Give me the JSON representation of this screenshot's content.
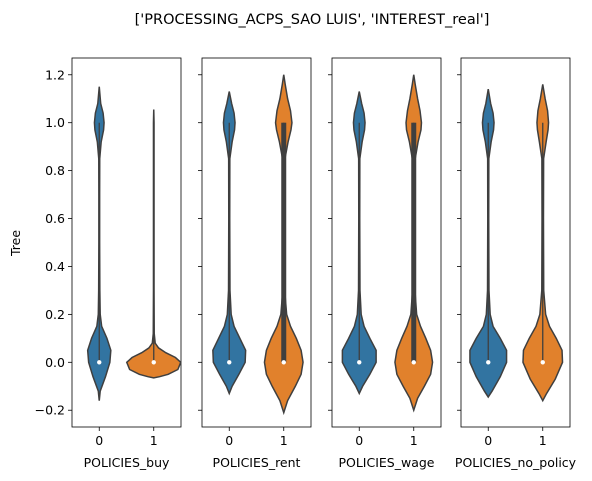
{
  "figure_title": "['PROCESSING_ACPS_SAO LUIS', 'INTEREST_real']",
  "chart_data": {
    "type": "violin",
    "title": "['PROCESSING_ACPS_SAO LUIS', 'INTEREST_real']",
    "ylabel": "Tree",
    "ylim": [
      -0.27,
      1.27
    ],
    "yticks": [
      -0.2,
      0.0,
      0.2,
      0.4,
      0.6,
      0.8,
      1.0,
      1.2
    ],
    "ytick_labels": [
      "−0.2",
      "0.0",
      "0.2",
      "0.4",
      "0.6",
      "0.8",
      "1.0",
      "1.2"
    ],
    "categories": [
      "0",
      "1"
    ],
    "colors": {
      "0": "#3274a1",
      "1": "#e1812c",
      "outline": "#3f3f3f"
    },
    "panels": [
      {
        "xlabel": "POLICIES_buy",
        "violins": [
          {
            "category": "0",
            "median": 0.0,
            "q1": 0.0,
            "q3": 0.0,
            "range": [
              -0.16,
              1.15
            ],
            "profile": [
              [
                -0.16,
                0.0
              ],
              [
                -0.12,
                0.02
              ],
              [
                -0.06,
                0.13
              ],
              [
                0.0,
                0.22
              ],
              [
                0.05,
                0.24
              ],
              [
                0.1,
                0.16
              ],
              [
                0.15,
                0.05
              ],
              [
                0.2,
                0.02
              ],
              [
                0.3,
                0.012
              ],
              [
                0.5,
                0.008
              ],
              [
                0.7,
                0.008
              ],
              [
                0.85,
                0.01
              ],
              [
                0.92,
                0.04
              ],
              [
                0.97,
                0.09
              ],
              [
                1.0,
                0.1
              ],
              [
                1.04,
                0.08
              ],
              [
                1.08,
                0.03
              ],
              [
                1.15,
                0.0
              ]
            ]
          },
          {
            "category": "1",
            "median": 0.0,
            "q1": 0.0,
            "q3": 0.0,
            "range": [
              -0.065,
              1.055
            ],
            "profile": [
              [
                -0.065,
                0.0
              ],
              [
                -0.06,
                0.12
              ],
              [
                -0.05,
                0.3
              ],
              [
                -0.03,
                0.5
              ],
              [
                0.0,
                0.56
              ],
              [
                0.02,
                0.45
              ],
              [
                0.04,
                0.25
              ],
              [
                0.06,
                0.1
              ],
              [
                0.08,
                0.03
              ],
              [
                0.12,
                0.01
              ],
              [
                0.3,
                0.006
              ],
              [
                0.7,
                0.006
              ],
              [
                1.0,
                0.006
              ],
              [
                1.055,
                0.0
              ]
            ]
          }
        ]
      },
      {
        "xlabel": "POLICIES_rent",
        "violins": [
          {
            "category": "0",
            "median": 0.0,
            "q1": 0.0,
            "q3": 0.0,
            "range": [
              -0.13,
              1.13
            ],
            "profile": [
              [
                -0.13,
                0.0
              ],
              [
                -0.1,
                0.06
              ],
              [
                -0.05,
                0.2
              ],
              [
                0.0,
                0.33
              ],
              [
                0.05,
                0.34
              ],
              [
                0.1,
                0.22
              ],
              [
                0.15,
                0.1
              ],
              [
                0.2,
                0.04
              ],
              [
                0.3,
                0.015
              ],
              [
                0.6,
                0.01
              ],
              [
                0.85,
                0.012
              ],
              [
                0.92,
                0.06
              ],
              [
                0.97,
                0.11
              ],
              [
                1.0,
                0.12
              ],
              [
                1.04,
                0.1
              ],
              [
                1.08,
                0.05
              ],
              [
                1.13,
                0.0
              ]
            ]
          },
          {
            "category": "1",
            "median": 0.0,
            "q1": 0.0,
            "q3": 1.0,
            "range": [
              -0.21,
              1.2
            ],
            "profile": [
              [
                -0.21,
                0.0
              ],
              [
                -0.16,
                0.08
              ],
              [
                -0.1,
                0.24
              ],
              [
                -0.05,
                0.36
              ],
              [
                0.0,
                0.4
              ],
              [
                0.05,
                0.36
              ],
              [
                0.1,
                0.26
              ],
              [
                0.15,
                0.14
              ],
              [
                0.2,
                0.06
              ],
              [
                0.3,
                0.02
              ],
              [
                0.6,
                0.015
              ],
              [
                0.85,
                0.025
              ],
              [
                0.92,
                0.09
              ],
              [
                0.97,
                0.15
              ],
              [
                1.0,
                0.17
              ],
              [
                1.05,
                0.14
              ],
              [
                1.1,
                0.08
              ],
              [
                1.16,
                0.03
              ],
              [
                1.2,
                0.0
              ]
            ]
          }
        ]
      },
      {
        "xlabel": "POLICIES_wage",
        "violins": [
          {
            "category": "0",
            "median": 0.0,
            "q1": 0.0,
            "q3": 0.0,
            "range": [
              -0.13,
              1.13
            ],
            "profile": [
              [
                -0.13,
                0.0
              ],
              [
                -0.1,
                0.07
              ],
              [
                -0.05,
                0.22
              ],
              [
                0.0,
                0.35
              ],
              [
                0.05,
                0.35
              ],
              [
                0.1,
                0.22
              ],
              [
                0.15,
                0.1
              ],
              [
                0.2,
                0.04
              ],
              [
                0.3,
                0.015
              ],
              [
                0.6,
                0.01
              ],
              [
                0.85,
                0.012
              ],
              [
                0.92,
                0.06
              ],
              [
                0.97,
                0.11
              ],
              [
                1.0,
                0.12
              ],
              [
                1.04,
                0.1
              ],
              [
                1.08,
                0.05
              ],
              [
                1.13,
                0.0
              ]
            ]
          },
          {
            "category": "1",
            "median": 0.0,
            "q1": 0.0,
            "q3": 1.0,
            "range": [
              -0.2,
              1.2
            ],
            "profile": [
              [
                -0.2,
                0.0
              ],
              [
                -0.15,
                0.08
              ],
              [
                -0.1,
                0.22
              ],
              [
                -0.05,
                0.35
              ],
              [
                0.0,
                0.39
              ],
              [
                0.05,
                0.35
              ],
              [
                0.1,
                0.25
              ],
              [
                0.15,
                0.14
              ],
              [
                0.2,
                0.06
              ],
              [
                0.3,
                0.025
              ],
              [
                0.6,
                0.02
              ],
              [
                0.85,
                0.03
              ],
              [
                0.92,
                0.09
              ],
              [
                0.97,
                0.15
              ],
              [
                1.0,
                0.16
              ],
              [
                1.05,
                0.13
              ],
              [
                1.1,
                0.08
              ],
              [
                1.16,
                0.03
              ],
              [
                1.2,
                0.0
              ]
            ]
          }
        ]
      },
      {
        "xlabel": "POLICIES_no_policy",
        "violins": [
          {
            "category": "0",
            "median": 0.0,
            "q1": 0.0,
            "q3": 0.0,
            "range": [
              -0.145,
              1.14
            ],
            "profile": [
              [
                -0.145,
                0.0
              ],
              [
                -0.12,
                0.08
              ],
              [
                -0.06,
                0.25
              ],
              [
                0.0,
                0.38
              ],
              [
                0.05,
                0.38
              ],
              [
                0.1,
                0.25
              ],
              [
                0.15,
                0.1
              ],
              [
                0.2,
                0.04
              ],
              [
                0.3,
                0.015
              ],
              [
                0.6,
                0.01
              ],
              [
                0.85,
                0.012
              ],
              [
                0.92,
                0.06
              ],
              [
                0.97,
                0.11
              ],
              [
                1.0,
                0.12
              ],
              [
                1.04,
                0.1
              ],
              [
                1.08,
                0.05
              ],
              [
                1.14,
                0.0
              ]
            ]
          },
          {
            "category": "1",
            "median": 0.0,
            "q1": 0.0,
            "q3": 0.0,
            "range": [
              -0.16,
              1.16
            ],
            "profile": [
              [
                -0.16,
                0.0
              ],
              [
                -0.13,
                0.08
              ],
              [
                -0.07,
                0.26
              ],
              [
                0.0,
                0.41
              ],
              [
                0.05,
                0.4
              ],
              [
                0.1,
                0.28
              ],
              [
                0.15,
                0.14
              ],
              [
                0.2,
                0.06
              ],
              [
                0.3,
                0.02
              ],
              [
                0.6,
                0.015
              ],
              [
                0.85,
                0.018
              ],
              [
                0.92,
                0.07
              ],
              [
                0.97,
                0.11
              ],
              [
                1.0,
                0.12
              ],
              [
                1.05,
                0.1
              ],
              [
                1.1,
                0.05
              ],
              [
                1.16,
                0.0
              ]
            ]
          }
        ]
      }
    ]
  }
}
